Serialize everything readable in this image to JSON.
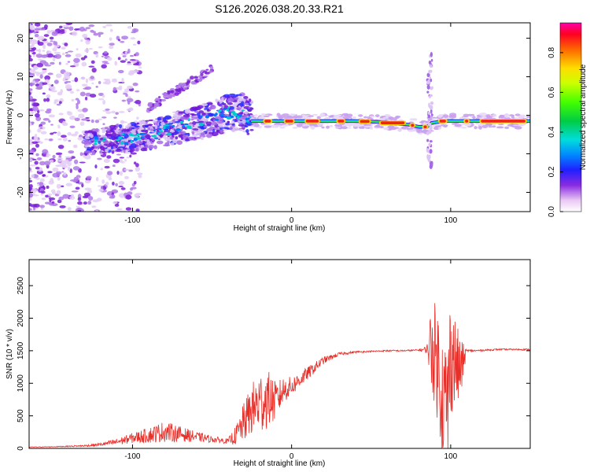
{
  "title": "S126.2026.038.20.33.R21",
  "colors": {
    "snr_line": "#e8302a",
    "axis": "#000000",
    "spec_bg": "#ffffff"
  },
  "chart_data": [
    {
      "type": "heatmap",
      "name": "spectrogram",
      "xlabel": "Height of straight line (km)",
      "ylabel": "Frequency (Hz)",
      "xlim": [
        -165,
        150
      ],
      "ylim": [
        -25,
        24
      ],
      "xticks": [
        -100,
        0,
        100
      ],
      "yticks": [
        -20,
        -10,
        0,
        10,
        20
      ],
      "ridge": {
        "x": [
          -125,
          -110,
          -95,
          -80,
          -65,
          -50,
          -40,
          -30,
          -25,
          -20,
          0,
          20,
          40,
          60,
          75,
          80,
          85,
          88,
          95,
          110,
          130,
          148
        ],
        "freq": [
          -7,
          -6,
          -5.5,
          -4,
          -2.5,
          -1,
          0.5,
          1,
          -1.5,
          -1.5,
          -1.5,
          -1.5,
          -1.5,
          -1.8,
          -2.5,
          -3,
          -3,
          -2,
          -1.5,
          -1.5,
          -1.5,
          -1.5
        ]
      },
      "colorbar": {
        "label": "Normalized spectral amplitude",
        "ticks": [
          "0.0",
          "0.2",
          "0.4",
          "0.6",
          "0.8"
        ],
        "range": [
          0,
          0.95
        ]
      }
    },
    {
      "type": "line",
      "name": "snr",
      "xlabel": "Height of straight line (km)",
      "ylabel": "SNR (10 * v/v)",
      "xlim": [
        -165,
        150
      ],
      "ylim": [
        0,
        2900
      ],
      "xticks": [
        -100,
        0,
        100
      ],
      "yticks": [
        0,
        500,
        1000,
        1500,
        2000,
        2500
      ],
      "series": [
        {
          "name": "SNR",
          "x": [
            -165,
            -150,
            -130,
            -120,
            -110,
            -100,
            -90,
            -80,
            -70,
            -60,
            -50,
            -40,
            -35,
            -30,
            -25,
            -20,
            -15,
            -10,
            -5,
            0,
            5,
            10,
            15,
            20,
            25,
            30,
            40,
            50,
            60,
            70,
            80,
            85,
            88,
            92,
            95,
            98,
            100,
            103,
            106,
            110,
            115,
            130,
            150
          ],
          "y": [
            20,
            25,
            40,
            60,
            100,
            160,
            200,
            260,
            220,
            180,
            140,
            110,
            200,
            400,
            600,
            700,
            760,
            720,
            900,
            950,
            1050,
            1150,
            1250,
            1350,
            1400,
            1450,
            1480,
            1490,
            1500,
            1500,
            1510,
            1520,
            1600,
            1300,
            800,
            600,
            1500,
            1300,
            1200,
            1500,
            1500,
            1520,
            1520
          ],
          "noise": [
            5,
            5,
            15,
            25,
            50,
            80,
            120,
            160,
            120,
            80,
            50,
            40,
            150,
            300,
            400,
            500,
            450,
            300,
            200,
            150,
            120,
            100,
            80,
            60,
            40,
            25,
            15,
            12,
            12,
            12,
            12,
            60,
            700,
            900,
            1000,
            1100,
            1000,
            700,
            500,
            20,
            15,
            12,
            12
          ]
        }
      ]
    }
  ]
}
